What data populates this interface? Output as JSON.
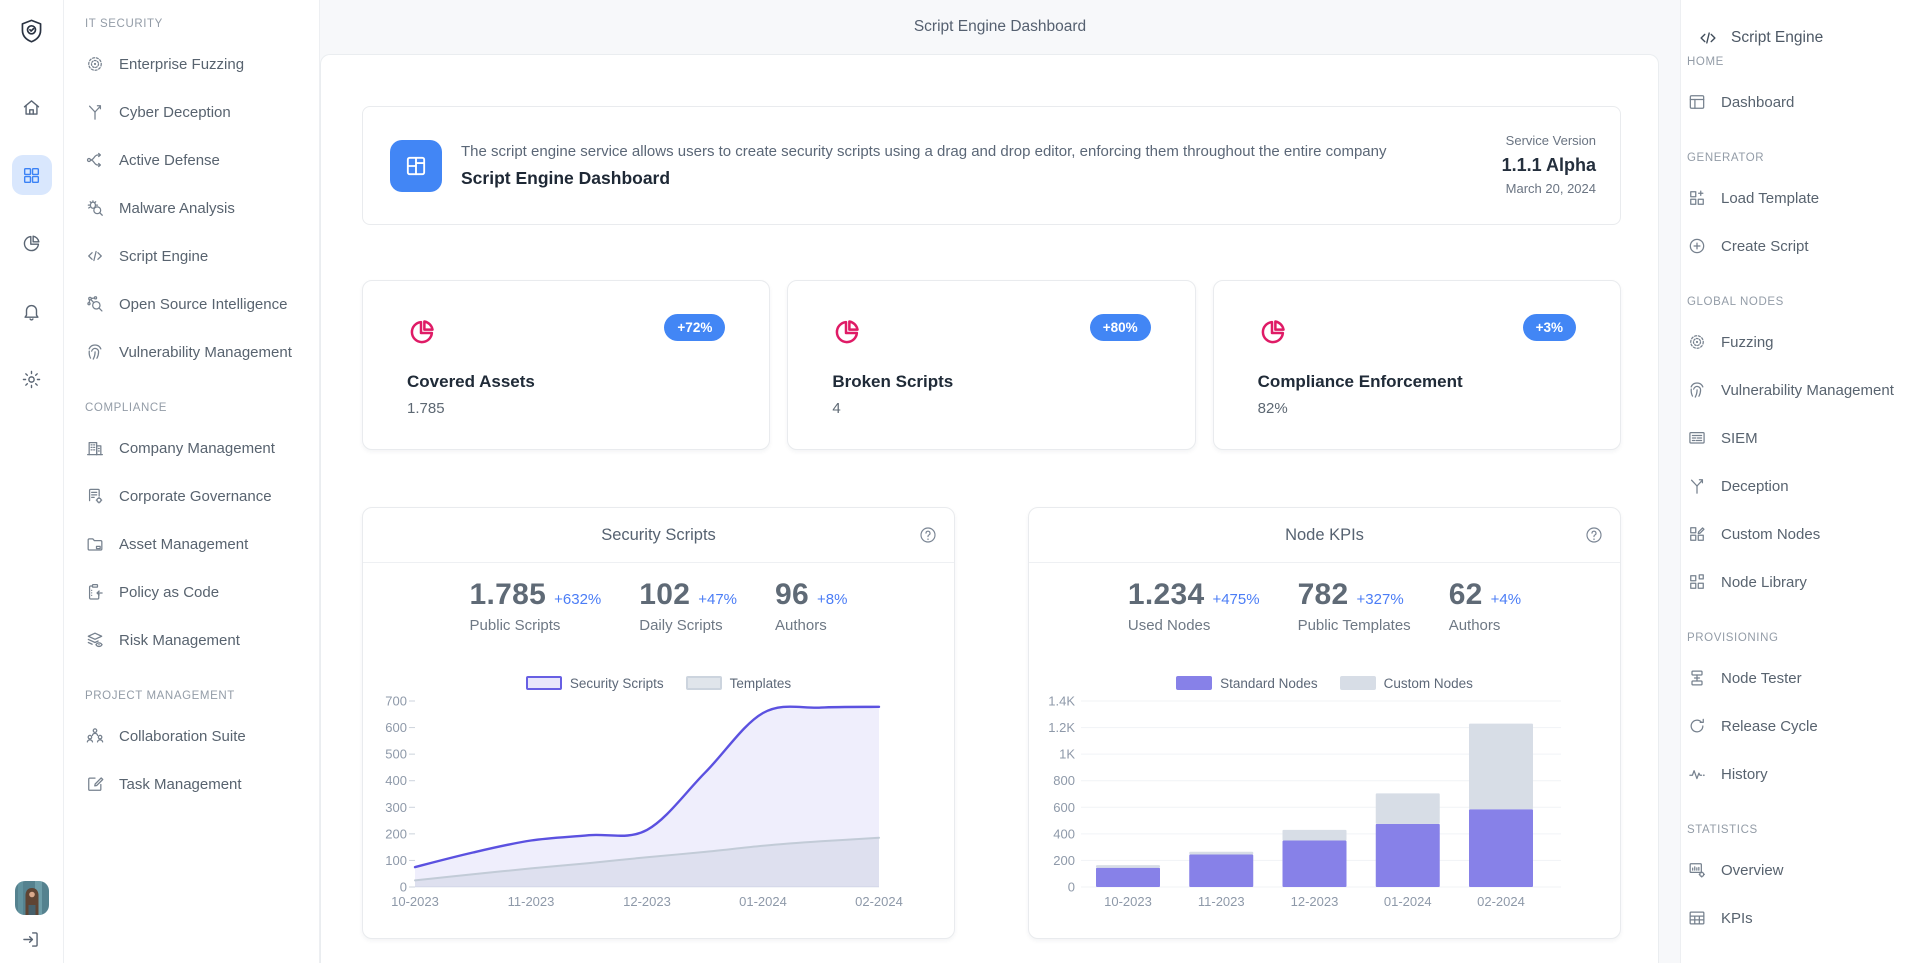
{
  "header": {
    "title": "Script Engine Dashboard"
  },
  "colors": {
    "accent_blue": "#4286f5",
    "accent_pink": "#df1b66",
    "indigo": "#5b51e0",
    "bar_indigo": "#8781e8",
    "bar_gray": "#d7dde6",
    "active_rail_bg": "#d9e7fd"
  },
  "rail": {
    "logo": {
      "name": "shield-logo-icon"
    },
    "icons": [
      {
        "name": "home-icon",
        "active": false
      },
      {
        "name": "apps-grid-icon",
        "active": true
      },
      {
        "name": "pie-chart-icon",
        "active": false
      },
      {
        "name": "bell-icon",
        "active": false
      },
      {
        "name": "gear-icon",
        "active": false
      }
    ],
    "avatar": {
      "name": "user-avatar"
    },
    "logout": {
      "name": "logout-icon"
    }
  },
  "left_sidebar": {
    "sections": [
      {
        "title": "IT SECURITY",
        "items": [
          {
            "label": "Enterprise Fuzzing",
            "icon": "target-icon"
          },
          {
            "label": "Cyber Deception",
            "icon": "branch-icon"
          },
          {
            "label": "Active Defense",
            "icon": "flow-arrows-icon"
          },
          {
            "label": "Malware Analysis",
            "icon": "bug-search-icon"
          },
          {
            "label": "Script Engine",
            "icon": "code-icon"
          },
          {
            "label": "Open Source Intelligence",
            "icon": "network-search-icon"
          },
          {
            "label": "Vulnerability Management",
            "icon": "fingerprint-icon"
          }
        ]
      },
      {
        "title": "COMPLIANCE",
        "items": [
          {
            "label": "Company Management",
            "icon": "building-icon"
          },
          {
            "label": "Corporate Governance",
            "icon": "document-gear-icon"
          },
          {
            "label": "Asset Management",
            "icon": "folder-icon"
          },
          {
            "label": "Policy as Code",
            "icon": "clipboard-arrow-icon"
          },
          {
            "label": "Risk Management",
            "icon": "layers-eye-icon"
          }
        ]
      },
      {
        "title": "PROJECT MANAGEMENT",
        "items": [
          {
            "label": "Collaboration Suite",
            "icon": "team-icon"
          },
          {
            "label": "Task Management",
            "icon": "task-edit-icon"
          }
        ]
      }
    ]
  },
  "hero": {
    "icon": "dashboard-tile-icon",
    "description": "The script engine service allows users to create security scripts using a drag and drop editor, enforcing them throughout the entire company",
    "title": "Script Engine Dashboard",
    "service_version_label": "Service Version",
    "version": "1.1.1 Alpha",
    "date": "March 20, 2024"
  },
  "stat_cards": [
    {
      "icon": "pie-chart-icon",
      "title": "Covered Assets",
      "value": "1.785",
      "badge": "+72%"
    },
    {
      "icon": "pie-chart-icon",
      "title": "Broken Scripts",
      "value": "4",
      "badge": "+80%"
    },
    {
      "icon": "pie-chart-icon",
      "title": "Compliance Enforcement",
      "value": "82%",
      "badge": "+3%"
    }
  ],
  "chart_data": [
    {
      "type": "area",
      "title": "Security Scripts",
      "help_icon": "help-icon",
      "kpis": [
        {
          "value": "1.785",
          "delta": "+632%",
          "label": "Public Scripts"
        },
        {
          "value": "102",
          "delta": "+47%",
          "label": "Daily Scripts"
        },
        {
          "value": "96",
          "delta": "+8%",
          "label": "Authors"
        }
      ],
      "legend": [
        {
          "label": "Security Scripts",
          "swatch_fill": "#e9e7fb",
          "swatch_border": "#675fe3"
        },
        {
          "label": "Templates",
          "swatch_fill": "#e0e5eb",
          "swatch_border": "#ccd4de"
        }
      ],
      "x_labels": [
        "10-2023",
        "11-2023",
        "12-2023",
        "01-2024",
        "02-2024"
      ],
      "yticks": [
        0,
        100,
        200,
        300,
        400,
        500,
        600,
        700
      ],
      "ylim": [
        0,
        700
      ],
      "samples_per_interval": 2,
      "series": [
        {
          "name": "Security Scripts",
          "color": "#5b51e0",
          "fill": "rgba(101,92,230,0.10)",
          "values": [
            75,
            130,
            175,
            195,
            215,
            430,
            655,
            675,
            678
          ]
        },
        {
          "name": "Templates",
          "color": "#c2cbd7",
          "fill": "rgba(166,177,194,0.22)",
          "values": [
            25,
            48,
            70,
            90,
            112,
            132,
            155,
            172,
            185
          ]
        }
      ]
    },
    {
      "type": "stacked-bar",
      "title": "Node KPIs",
      "help_icon": "help-icon",
      "kpis": [
        {
          "value": "1.234",
          "delta": "+475%",
          "label": "Used Nodes"
        },
        {
          "value": "782",
          "delta": "+327%",
          "label": "Public Templates"
        },
        {
          "value": "62",
          "delta": "+4%",
          "label": "Authors"
        }
      ],
      "legend": [
        {
          "label": "Standard Nodes",
          "swatch_fill": "#8781e8",
          "swatch_border": "#8781e8"
        },
        {
          "label": "Custom Nodes",
          "swatch_fill": "#d7dde6",
          "swatch_border": "#d7dde6"
        }
      ],
      "categories": [
        "10-2023",
        "11-2023",
        "12-2023",
        "01-2024",
        "02-2024"
      ],
      "ytick_labels": [
        "0",
        "200",
        "400",
        "600",
        "800",
        "1K",
        "1.2K",
        "1.4K"
      ],
      "yticks": [
        0,
        200,
        400,
        600,
        800,
        1000,
        1200,
        1400
      ],
      "ylim": [
        0,
        1400
      ],
      "series": [
        {
          "name": "Standard Nodes",
          "color": "#8781e8",
          "values": [
            145,
            245,
            350,
            475,
            585
          ]
        },
        {
          "name": "Custom Nodes",
          "color": "#d7dde6",
          "values": [
            20,
            20,
            80,
            230,
            645
          ]
        }
      ]
    }
  ],
  "right_sidebar": {
    "header": {
      "icon": "code-icon",
      "label": "Script Engine"
    },
    "sections": [
      {
        "title": "HOME",
        "items": [
          {
            "label": "Dashboard",
            "icon": "layout-icon"
          }
        ]
      },
      {
        "title": "GENERATOR",
        "items": [
          {
            "label": "Load Template",
            "icon": "grid-plus-icon"
          },
          {
            "label": "Create Script",
            "icon": "plus-circle-icon"
          }
        ]
      },
      {
        "title": "GLOBAL NODES",
        "items": [
          {
            "label": "Fuzzing",
            "icon": "target-icon"
          },
          {
            "label": "Vulnerability Management",
            "icon": "fingerprint-icon"
          },
          {
            "label": "SIEM",
            "icon": "siem-screen-icon"
          },
          {
            "label": "Deception",
            "icon": "branch-icon"
          },
          {
            "label": "Custom Nodes",
            "icon": "grid-edit-icon"
          },
          {
            "label": "Node Library",
            "icon": "grid-box-icon"
          }
        ]
      },
      {
        "title": "PROVISIONING",
        "items": [
          {
            "label": "Node Tester",
            "icon": "node-stack-icon"
          },
          {
            "label": "Release Cycle",
            "icon": "refresh-icon"
          },
          {
            "label": "History",
            "icon": "activity-icon"
          }
        ]
      },
      {
        "title": "STATISTICS",
        "items": [
          {
            "label": "Overview",
            "icon": "report-icon"
          },
          {
            "label": "KPIs",
            "icon": "table-icon"
          }
        ]
      }
    ]
  }
}
